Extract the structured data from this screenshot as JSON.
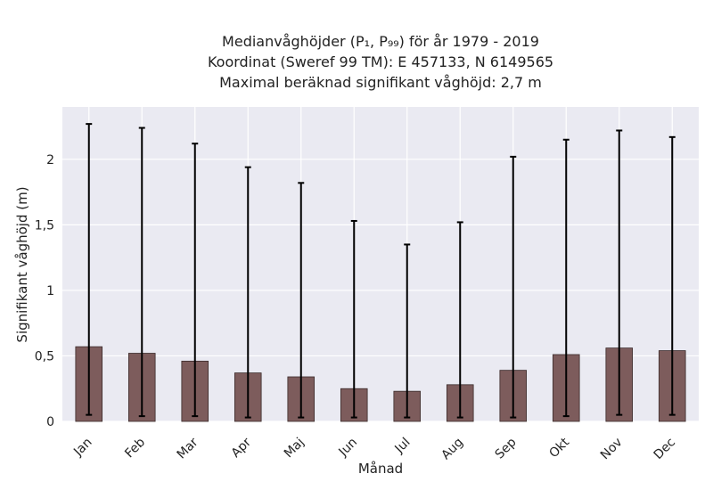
{
  "chart_data": {
    "type": "bar",
    "title_lines": [
      "Medianvåghöjder (P₁, P₉₉) för år 1979 - 2019",
      "Koordinat (Sweref 99 TM): E 457133, N 6149565",
      "Maximal beräknad signifikant våghöjd: 2,7 m"
    ],
    "xlabel": "Månad",
    "ylabel": "Signifikant våghöjd (m)",
    "ylim": [
      0,
      2.4
    ],
    "yticks": [
      0,
      0.5,
      1,
      1.5,
      2
    ],
    "ytick_labels": [
      "0",
      "0,5",
      "1",
      "1,5",
      "2"
    ],
    "categories": [
      "Jan",
      "Feb",
      "Mar",
      "Apr",
      "Maj",
      "Jun",
      "Jul",
      "Aug",
      "Sep",
      "Okt",
      "Nov",
      "Dec"
    ],
    "values": [
      0.57,
      0.52,
      0.46,
      0.37,
      0.34,
      0.25,
      0.23,
      0.28,
      0.39,
      0.51,
      0.56,
      0.54
    ],
    "p1": [
      0.05,
      0.04,
      0.04,
      0.03,
      0.03,
      0.03,
      0.03,
      0.03,
      0.03,
      0.04,
      0.05,
      0.05
    ],
    "p99": [
      2.27,
      2.24,
      2.12,
      1.94,
      1.82,
      1.53,
      1.35,
      1.52,
      2.02,
      2.15,
      2.22,
      2.17
    ],
    "grid": true,
    "bar_color": "#7d5c5c",
    "background_color": "#eaeaf2"
  }
}
